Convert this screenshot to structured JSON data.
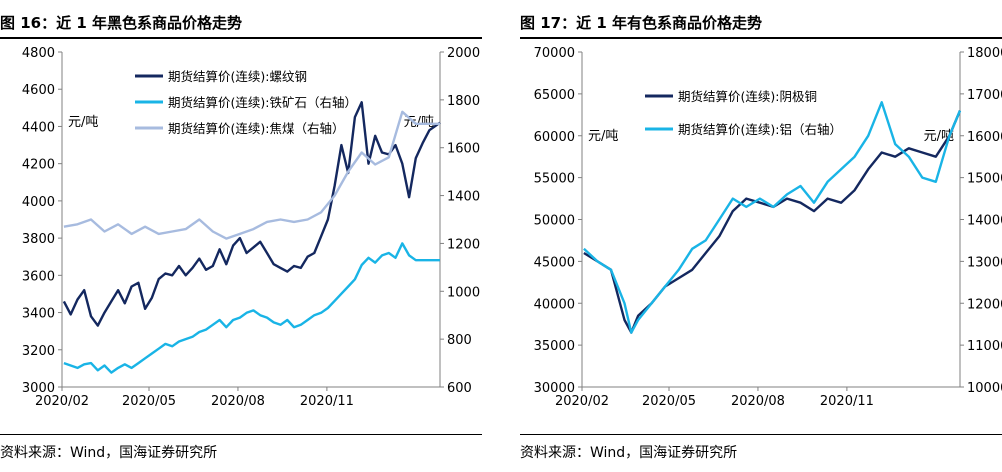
{
  "charts": [
    {
      "figure_title": "图 16：近 1 年黑色系商品价格走势",
      "source": "资料来源：Wind，国海证券研究所",
      "left_unit": "元/吨",
      "right_unit": "元/吨"
    },
    {
      "figure_title": "图 17：近 1 年有色系商品价格走势",
      "source": "资料来源：Wind，国海证券研究所",
      "left_unit": "元/吨",
      "right_unit": "元/吨"
    }
  ],
  "chart_data": [
    {
      "type": "line",
      "title": "图 16：近 1 年黑色系商品价格走势",
      "x_ticks": [
        "2020/02",
        "2020/05",
        "2020/08",
        "2020/11"
      ],
      "x_range": [
        "2020-02-01",
        "2021-02-26"
      ],
      "y_left": {
        "label": "元/吨",
        "min": 3000,
        "max": 4800,
        "ticks": [
          3000,
          3200,
          3400,
          3600,
          3800,
          4000,
          4200,
          4400,
          4600,
          4800
        ]
      },
      "y_right": {
        "label": "元/吨",
        "min": 600,
        "max": 2000,
        "ticks": [
          600,
          800,
          1000,
          1200,
          1400,
          1600,
          1800,
          2000
        ]
      },
      "legend_position": "top",
      "series": [
        {
          "name": "期货结算价(连续):螺纹钢",
          "axis": "left",
          "color": "#14285f",
          "points": [
            [
              "2020-02-03",
              3460
            ],
            [
              "2020-02-10",
              3390
            ],
            [
              "2020-02-17",
              3470
            ],
            [
              "2020-02-24",
              3520
            ],
            [
              "2020-03-02",
              3380
            ],
            [
              "2020-03-09",
              3330
            ],
            [
              "2020-03-16",
              3400
            ],
            [
              "2020-03-23",
              3460
            ],
            [
              "2020-03-30",
              3520
            ],
            [
              "2020-04-06",
              3450
            ],
            [
              "2020-04-13",
              3540
            ],
            [
              "2020-04-20",
              3560
            ],
            [
              "2020-04-27",
              3420
            ],
            [
              "2020-05-04",
              3480
            ],
            [
              "2020-05-11",
              3580
            ],
            [
              "2020-05-18",
              3610
            ],
            [
              "2020-05-25",
              3600
            ],
            [
              "2020-06-01",
              3650
            ],
            [
              "2020-06-08",
              3600
            ],
            [
              "2020-06-15",
              3640
            ],
            [
              "2020-06-22",
              3690
            ],
            [
              "2020-06-29",
              3630
            ],
            [
              "2020-07-06",
              3650
            ],
            [
              "2020-07-13",
              3740
            ],
            [
              "2020-07-20",
              3660
            ],
            [
              "2020-07-27",
              3760
            ],
            [
              "2020-08-03",
              3800
            ],
            [
              "2020-08-10",
              3720
            ],
            [
              "2020-08-17",
              3750
            ],
            [
              "2020-08-24",
              3780
            ],
            [
              "2020-08-31",
              3720
            ],
            [
              "2020-09-07",
              3660
            ],
            [
              "2020-09-14",
              3640
            ],
            [
              "2020-09-21",
              3620
            ],
            [
              "2020-09-28",
              3650
            ],
            [
              "2020-10-05",
              3640
            ],
            [
              "2020-10-12",
              3700
            ],
            [
              "2020-10-19",
              3720
            ],
            [
              "2020-10-26",
              3810
            ],
            [
              "2020-11-02",
              3900
            ],
            [
              "2020-11-09",
              4080
            ],
            [
              "2020-11-16",
              4300
            ],
            [
              "2020-11-23",
              4150
            ],
            [
              "2020-11-30",
              4450
            ],
            [
              "2020-12-07",
              4530
            ],
            [
              "2020-12-14",
              4200
            ],
            [
              "2020-12-21",
              4350
            ],
            [
              "2020-12-28",
              4260
            ],
            [
              "2021-01-04",
              4250
            ],
            [
              "2021-01-11",
              4300
            ],
            [
              "2021-01-18",
              4200
            ],
            [
              "2021-01-25",
              4020
            ],
            [
              "2021-02-01",
              4230
            ],
            [
              "2021-02-08",
              4310
            ],
            [
              "2021-02-15",
              4380
            ],
            [
              "2021-02-26",
              4420
            ]
          ]
        },
        {
          "name": "期货结算价(连续):铁矿石（右轴）",
          "axis": "right",
          "color": "#19b4e6",
          "points": [
            [
              "2020-02-03",
              700
            ],
            [
              "2020-02-10",
              690
            ],
            [
              "2020-02-17",
              680
            ],
            [
              "2020-02-24",
              695
            ],
            [
              "2020-03-02",
              700
            ],
            [
              "2020-03-09",
              670
            ],
            [
              "2020-03-16",
              690
            ],
            [
              "2020-03-23",
              660
            ],
            [
              "2020-03-30",
              680
            ],
            [
              "2020-04-06",
              695
            ],
            [
              "2020-04-13",
              680
            ],
            [
              "2020-04-20",
              700
            ],
            [
              "2020-04-27",
              720
            ],
            [
              "2020-05-04",
              740
            ],
            [
              "2020-05-11",
              760
            ],
            [
              "2020-05-18",
              780
            ],
            [
              "2020-05-25",
              770
            ],
            [
              "2020-06-01",
              790
            ],
            [
              "2020-06-08",
              800
            ],
            [
              "2020-06-15",
              810
            ],
            [
              "2020-06-22",
              830
            ],
            [
              "2020-06-29",
              840
            ],
            [
              "2020-07-06",
              860
            ],
            [
              "2020-07-13",
              880
            ],
            [
              "2020-07-20",
              850
            ],
            [
              "2020-07-27",
              880
            ],
            [
              "2020-08-03",
              890
            ],
            [
              "2020-08-10",
              910
            ],
            [
              "2020-08-17",
              920
            ],
            [
              "2020-08-24",
              900
            ],
            [
              "2020-08-31",
              890
            ],
            [
              "2020-09-07",
              870
            ],
            [
              "2020-09-14",
              860
            ],
            [
              "2020-09-21",
              880
            ],
            [
              "2020-09-28",
              850
            ],
            [
              "2020-10-05",
              860
            ],
            [
              "2020-10-12",
              880
            ],
            [
              "2020-10-19",
              900
            ],
            [
              "2020-10-26",
              910
            ],
            [
              "2020-11-02",
              930
            ],
            [
              "2020-11-09",
              960
            ],
            [
              "2020-11-16",
              990
            ],
            [
              "2020-11-23",
              1020
            ],
            [
              "2020-11-30",
              1050
            ],
            [
              "2020-12-07",
              1110
            ],
            [
              "2020-12-14",
              1140
            ],
            [
              "2020-12-21",
              1120
            ],
            [
              "2020-12-28",
              1150
            ],
            [
              "2021-01-04",
              1160
            ],
            [
              "2021-01-11",
              1140
            ],
            [
              "2021-01-18",
              1200
            ],
            [
              "2021-01-25",
              1150
            ],
            [
              "2021-02-01",
              1130
            ],
            [
              "2021-02-08",
              1130
            ],
            [
              "2021-02-15",
              1130
            ],
            [
              "2021-02-26",
              1130
            ]
          ]
        },
        {
          "name": "期货结算价(连续):焦煤（右轴）",
          "axis": "right",
          "color": "#a7bbdf",
          "points": [
            [
              "2020-02-03",
              1270
            ],
            [
              "2020-02-17",
              1280
            ],
            [
              "2020-03-02",
              1300
            ],
            [
              "2020-03-16",
              1250
            ],
            [
              "2020-03-30",
              1280
            ],
            [
              "2020-04-13",
              1240
            ],
            [
              "2020-04-27",
              1270
            ],
            [
              "2020-05-11",
              1240
            ],
            [
              "2020-05-25",
              1250
            ],
            [
              "2020-06-08",
              1260
            ],
            [
              "2020-06-22",
              1300
            ],
            [
              "2020-07-06",
              1250
            ],
            [
              "2020-07-20",
              1220
            ],
            [
              "2020-08-03",
              1240
            ],
            [
              "2020-08-17",
              1260
            ],
            [
              "2020-08-31",
              1290
            ],
            [
              "2020-09-14",
              1300
            ],
            [
              "2020-09-28",
              1290
            ],
            [
              "2020-10-12",
              1300
            ],
            [
              "2020-10-26",
              1330
            ],
            [
              "2020-11-09",
              1400
            ],
            [
              "2020-11-23",
              1500
            ],
            [
              "2020-12-07",
              1580
            ],
            [
              "2020-12-21",
              1530
            ],
            [
              "2021-01-04",
              1560
            ],
            [
              "2021-01-18",
              1750
            ],
            [
              "2021-02-01",
              1700
            ],
            [
              "2021-02-15",
              1700
            ],
            [
              "2021-02-26",
              1700
            ]
          ]
        }
      ]
    },
    {
      "type": "line",
      "title": "图 17：近 1 年有色系商品价格走势",
      "x_ticks": [
        "2020/02",
        "2020/05",
        "2020/08",
        "2020/11"
      ],
      "x_range": [
        "2020-02-01",
        "2021-02-26"
      ],
      "y_left": {
        "label": "元/吨",
        "min": 30000,
        "max": 70000,
        "ticks": [
          30000,
          35000,
          40000,
          45000,
          50000,
          55000,
          60000,
          65000,
          70000
        ]
      },
      "y_right": {
        "label": "元/吨",
        "min": 10000,
        "max": 18000,
        "ticks": [
          10000,
          11000,
          12000,
          13000,
          14000,
          15000,
          16000,
          17000,
          18000
        ]
      },
      "legend_position": "top",
      "series": [
        {
          "name": "期货结算价(连续):阴极铜",
          "axis": "left",
          "color": "#14285f",
          "points": [
            [
              "2020-02-03",
              46000
            ],
            [
              "2020-02-17",
              45000
            ],
            [
              "2020-03-02",
              44000
            ],
            [
              "2020-03-16",
              38000
            ],
            [
              "2020-03-23",
              36500
            ],
            [
              "2020-03-30",
              38500
            ],
            [
              "2020-04-13",
              40000
            ],
            [
              "2020-04-27",
              42000
            ],
            [
              "2020-05-11",
              43000
            ],
            [
              "2020-05-25",
              44000
            ],
            [
              "2020-06-08",
              46000
            ],
            [
              "2020-06-22",
              48000
            ],
            [
              "2020-07-06",
              51000
            ],
            [
              "2020-07-20",
              52500
            ],
            [
              "2020-08-03",
              52000
            ],
            [
              "2020-08-17",
              51500
            ],
            [
              "2020-08-31",
              52500
            ],
            [
              "2020-09-14",
              52000
            ],
            [
              "2020-09-28",
              51000
            ],
            [
              "2020-10-12",
              52500
            ],
            [
              "2020-10-26",
              52000
            ],
            [
              "2020-11-09",
              53500
            ],
            [
              "2020-11-23",
              56000
            ],
            [
              "2020-12-07",
              58000
            ],
            [
              "2020-12-21",
              57500
            ],
            [
              "2021-01-04",
              58500
            ],
            [
              "2021-01-18",
              58000
            ],
            [
              "2021-02-01",
              57500
            ],
            [
              "2021-02-15",
              60000
            ],
            [
              "2021-02-26",
              63000
            ]
          ]
        },
        {
          "name": "期货结算价(连续):铝（右轴）",
          "axis": "right",
          "color": "#19b4e6",
          "points": [
            [
              "2020-02-03",
              13300
            ],
            [
              "2020-02-17",
              13000
            ],
            [
              "2020-03-02",
              12800
            ],
            [
              "2020-03-16",
              12000
            ],
            [
              "2020-03-23",
              11300
            ],
            [
              "2020-03-30",
              11600
            ],
            [
              "2020-04-13",
              12000
            ],
            [
              "2020-04-27",
              12400
            ],
            [
              "2020-05-11",
              12800
            ],
            [
              "2020-05-25",
              13300
            ],
            [
              "2020-06-08",
              13500
            ],
            [
              "2020-06-22",
              14000
            ],
            [
              "2020-07-06",
              14500
            ],
            [
              "2020-07-20",
              14300
            ],
            [
              "2020-08-03",
              14500
            ],
            [
              "2020-08-17",
              14300
            ],
            [
              "2020-08-31",
              14600
            ],
            [
              "2020-09-14",
              14800
            ],
            [
              "2020-09-28",
              14400
            ],
            [
              "2020-10-12",
              14900
            ],
            [
              "2020-10-26",
              15200
            ],
            [
              "2020-11-09",
              15500
            ],
            [
              "2020-11-23",
              16000
            ],
            [
              "2020-12-07",
              16800
            ],
            [
              "2020-12-21",
              15800
            ],
            [
              "2021-01-04",
              15500
            ],
            [
              "2021-01-18",
              15000
            ],
            [
              "2021-02-01",
              14900
            ],
            [
              "2021-02-15",
              16000
            ],
            [
              "2021-02-26",
              16600
            ]
          ]
        }
      ]
    }
  ]
}
